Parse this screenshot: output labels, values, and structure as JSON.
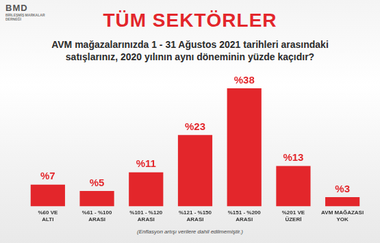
{
  "chart_data": {
    "type": "bar",
    "title": "TÜM SEKTÖRLER",
    "subtitle": "AVM mağazalarınızda 1 - 31 Ağustos 2021 tarihleri arasındaki satışlarınız, 2020 yılının aynı döneminin yüzde kaçıdır?",
    "annotations": [
      "BMD",
      "BİRLEŞMİŞ MARKALAR DERNEĞİ",
      "(Enflasyon artışı verilere dahil edilmemiştir.)"
    ],
    "categories": [
      "%60 VE ALTI",
      "%61 - %100 ARASI",
      "%101 - %120 ARASI",
      "%121 - %150 ARASI",
      "%151 - %200 ARASI",
      "%201 VE ÜZERİ",
      "AVM MAĞAZASI YOK"
    ],
    "values": [
      7,
      5,
      11,
      23,
      38,
      13,
      3
    ],
    "value_labels": [
      "%7",
      "%5",
      "%11",
      "%23",
      "%38",
      "%13",
      "%3"
    ],
    "color": "#e3262b",
    "data_labels": true,
    "grid": false,
    "tick_labels": "x"
  }
}
